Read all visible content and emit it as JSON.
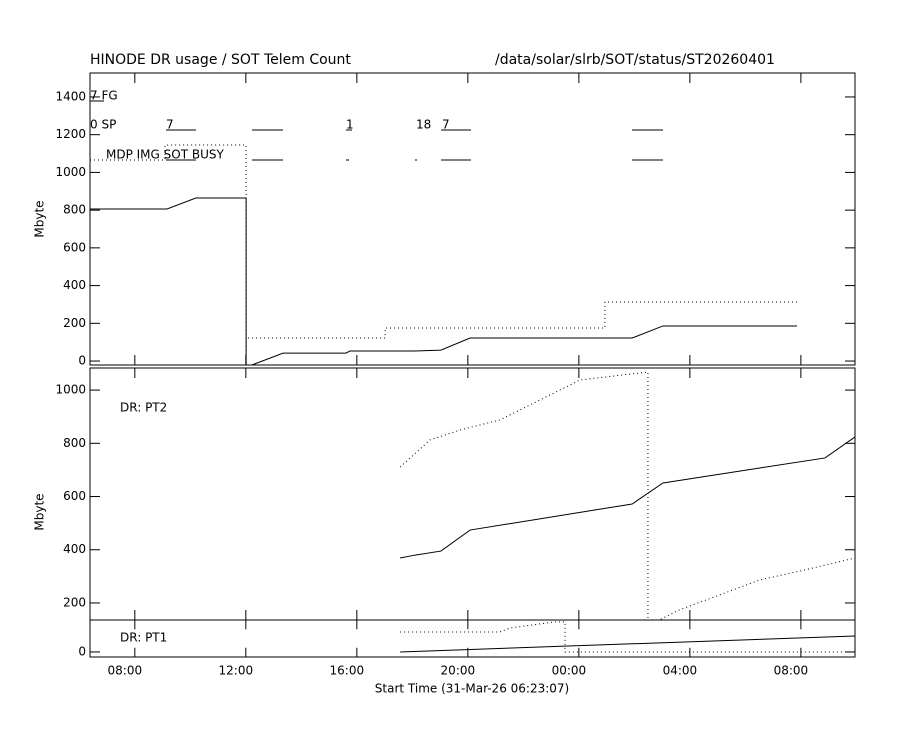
{
  "chart_data": [
    {
      "type": "line",
      "title": "HINODE DR usage / SOT Telem Count",
      "subtitle": "/data/solar/slrb/SOT/status/ST20260401",
      "ylabel": "Mbyte",
      "xlim": [
        6.385,
        33.95
      ],
      "ylim": [
        -21,
        1527
      ],
      "yticks": [
        0,
        200,
        400,
        600,
        800,
        1000,
        1200,
        1400
      ],
      "annotations": [
        "7 FG",
        "0 SP",
        "7",
        "1",
        "18",
        "7",
        "MDP IMG SOT BUSY"
      ],
      "series": [
        {
          "style": "solid",
          "color": "#000000",
          "x": [
            6.385,
            9.16,
            10.2,
            12.01,
            12.01,
            12.22,
            13.34,
            15.61,
            15.75,
            18.1,
            19.03,
            20.08,
            25.92,
            27.03,
            31.86
          ],
          "values": [
            806,
            806,
            864,
            864,
            -21,
            -21,
            42,
            42,
            53,
            53,
            58,
            122,
            122,
            186,
            186
          ]
        },
        {
          "style": "dotted",
          "color": "#000000",
          "x": [
            6.385,
            9.09,
            9.09,
            12.01,
            12.01,
            null,
            12.08,
            17.02,
            17.02,
            24.94,
            24.94,
            31.86
          ],
          "values": [
            1066,
            1066,
            1145,
            1145,
            -21,
            null,
            122,
            122,
            175,
            175,
            313,
            313
          ]
        }
      ]
    },
    {
      "type": "line",
      "label": "DR: PT2",
      "ylabel": "Mbyte",
      "xlim": [
        6.385,
        33.95
      ],
      "ylim": [
        136,
        1083
      ],
      "yticks": [
        200,
        400,
        600,
        800,
        1000
      ],
      "series": [
        {
          "style": "solid",
          "color": "#000000",
          "x": [
            17.56,
            18.1,
            19.03,
            20.08,
            25.92,
            27.03,
            32.87,
            33.95
          ],
          "values": [
            369,
            380,
            395,
            474,
            572,
            651,
            745,
            824
          ]
        },
        {
          "style": "dotted",
          "color": "#000000",
          "x": [
            17.56,
            18.64,
            19.72,
            21.16,
            22.6,
            24.04,
            26.49,
            26.49,
            26.89,
            27.62,
            29.07,
            30.5,
            32.13,
            33.95
          ],
          "values": [
            711,
            813,
            850,
            888,
            963,
            1038,
            1068,
            136,
            136,
            174,
            230,
            286,
            324,
            369
          ]
        }
      ]
    },
    {
      "type": "line",
      "label": "DR: PT1",
      "xlabel": "Start Time (31-Mar-26 06:23:07)",
      "xlim": [
        6.385,
        33.95
      ],
      "ylim": [
        -19,
        120
      ],
      "yticks": [
        0
      ],
      "xticks": [
        {
          "value": 8,
          "label": "08:00"
        },
        {
          "value": 12,
          "label": "12:00"
        },
        {
          "value": 16,
          "label": "16:00"
        },
        {
          "value": 20,
          "label": "20:00"
        },
        {
          "value": 24,
          "label": "00:00"
        },
        {
          "value": 28,
          "label": "04:00"
        },
        {
          "value": 32,
          "label": "08:00"
        }
      ],
      "series": [
        {
          "style": "solid",
          "color": "#000000",
          "x": [
            17.56,
            33.95
          ],
          "values": [
            0,
            60
          ]
        },
        {
          "style": "dotted",
          "color": "#000000",
          "x": [
            17.56,
            21.16,
            21.52,
            23.14,
            23.5,
            23.5,
            33.95
          ],
          "values": [
            75,
            75,
            90,
            113,
            113,
            0,
            0
          ]
        }
      ]
    }
  ]
}
